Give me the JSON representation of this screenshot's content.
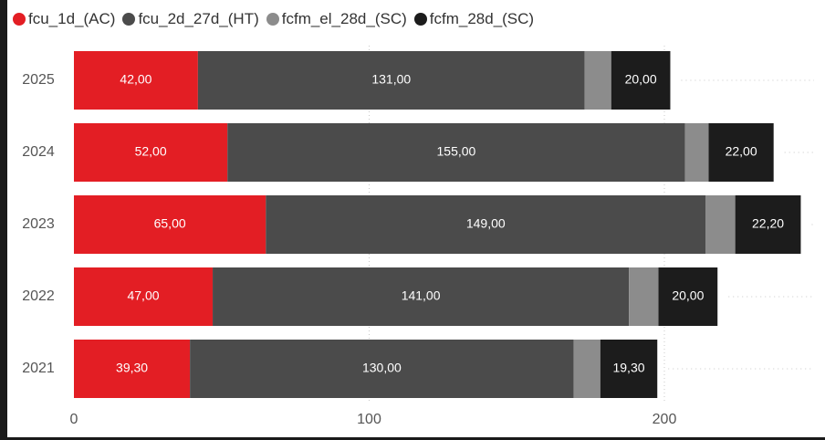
{
  "chart_data": {
    "type": "bar",
    "orientation": "horizontal",
    "stacked": true,
    "categories": [
      "2025",
      "2024",
      "2023",
      "2022",
      "2021"
    ],
    "series": [
      {
        "name": "fcu_1d_(AC)",
        "color": "#e31e24",
        "values": [
          42.0,
          52.0,
          65.0,
          47.0,
          39.3
        ],
        "labels": [
          "42,00",
          "52,00",
          "65,00",
          "47,00",
          "39,30"
        ]
      },
      {
        "name": "fcu_2d_27d_(HT)",
        "color": "#4b4b4b",
        "values": [
          131.0,
          155.0,
          149.0,
          141.0,
          130.0
        ],
        "labels": [
          "131,00",
          "155,00",
          "149,00",
          "141,00",
          "130,00"
        ]
      },
      {
        "name": "fcfm_el_28d_(SC)",
        "color": "#8c8c8c",
        "values": [
          9.0,
          8.0,
          10.0,
          10.0,
          9.0
        ],
        "labels": [
          "",
          "",
          "",
          "",
          ""
        ]
      },
      {
        "name": "fcfm_28d_(SC)",
        "color": "#1c1c1c",
        "values": [
          20.0,
          22.0,
          22.2,
          20.0,
          19.3
        ],
        "labels": [
          "20,00",
          "22,00",
          "22,20",
          "20,00",
          "19,30"
        ]
      }
    ],
    "xticks": [
      "0",
      "100",
      "200"
    ],
    "xlim": [
      0,
      250
    ],
    "grid": true,
    "legend": "top-left",
    "title": "",
    "xlabel": "",
    "ylabel": ""
  }
}
